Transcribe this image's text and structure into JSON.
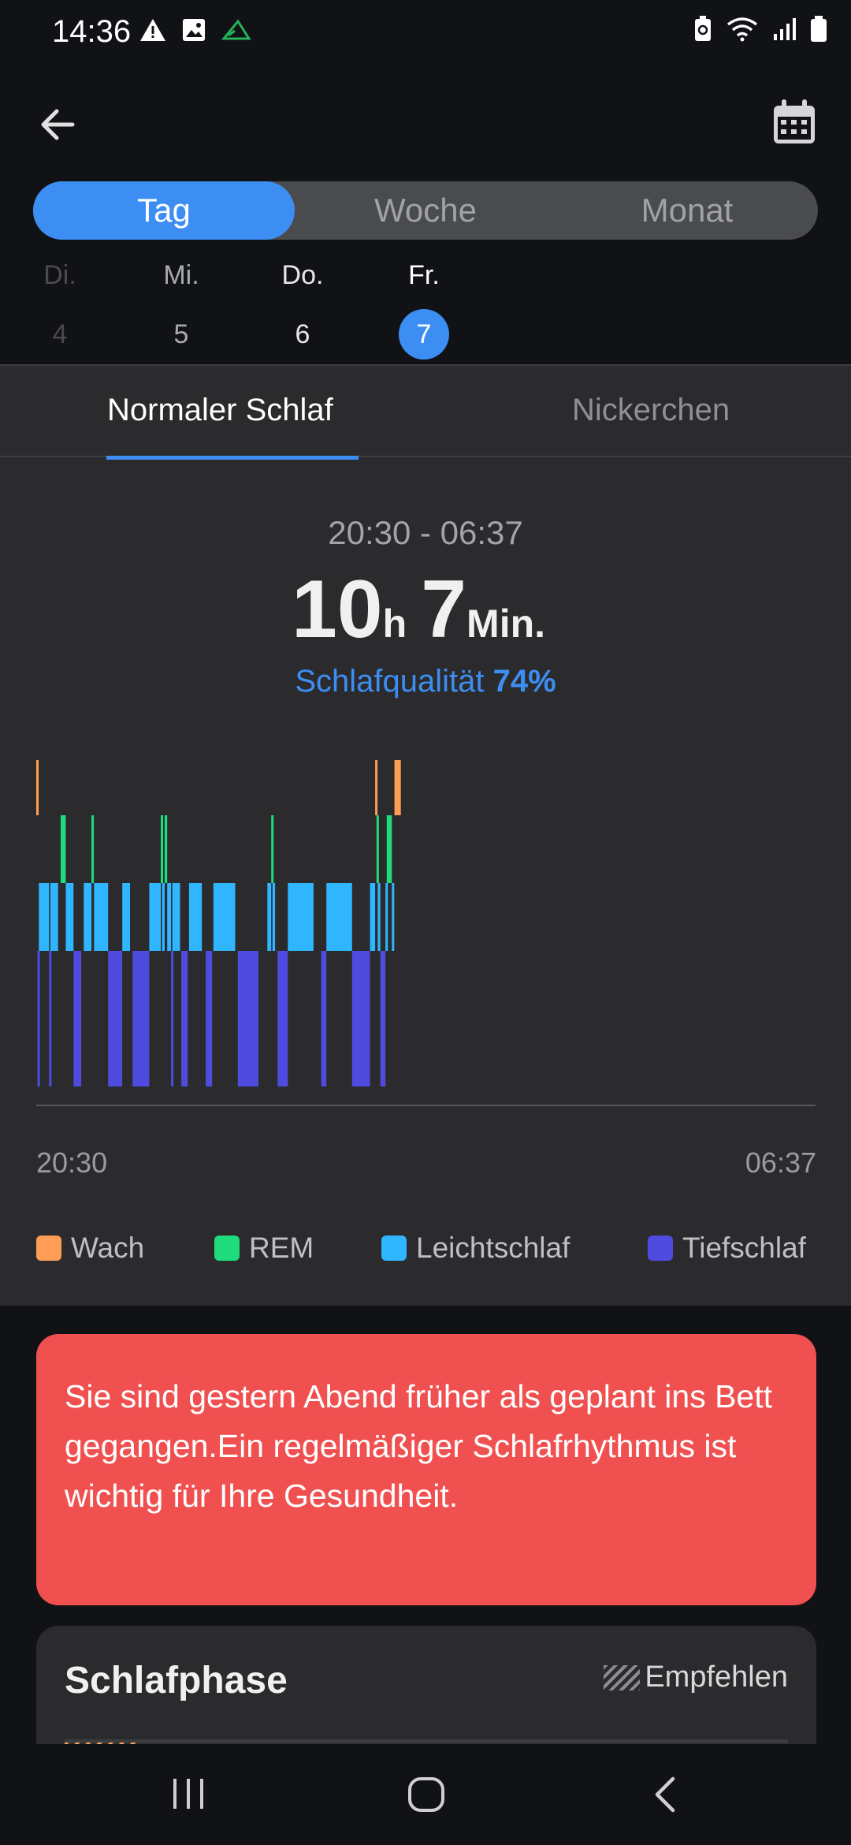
{
  "status_bar": {
    "time": "14:36",
    "left_icons": [
      "warning-icon",
      "image-icon",
      "cast-icon"
    ],
    "right_icons": [
      "battery-saver-icon",
      "wifi-icon",
      "signal-icon",
      "battery-icon"
    ]
  },
  "top_bar": {
    "back_icon": "arrow-left-icon",
    "calendar_icon": "calendar-icon"
  },
  "period_tabs": [
    {
      "label": "Tag",
      "active": true
    },
    {
      "label": "Woche",
      "active": false
    },
    {
      "label": "Monat",
      "active": false
    }
  ],
  "days": [
    {
      "name": "Di.",
      "num": "4"
    },
    {
      "name": "Mi.",
      "num": "5"
    },
    {
      "name": "Do.",
      "num": "6"
    },
    {
      "name": "Fr.",
      "num": "7",
      "selected": true
    }
  ],
  "sleep_tabs": [
    {
      "label": "Normaler Schlaf",
      "active": true
    },
    {
      "label": "Nickerchen",
      "active": false
    }
  ],
  "summary": {
    "time_range": "20:30 - 06:37",
    "hours": "10",
    "hours_unit": "h",
    "minutes": "7",
    "minutes_unit": "Min.",
    "quality_label": "Schlafqualität",
    "quality_value": "74%"
  },
  "chart_data": {
    "type": "timeline",
    "x_start": "20:30",
    "x_end": "06:37",
    "stages": [
      "Wach",
      "REM",
      "Leichtschlaf",
      "Tiefschlaf"
    ],
    "colors": {
      "Wach": "#ff9d57",
      "REM": "#1edc7c",
      "Leichtschlaf": "#30b5ff",
      "Tiefschlaf": "#4f4bdf"
    },
    "segments": [
      {
        "stage": "Wach",
        "start": "20:30",
        "end": "20:31"
      },
      {
        "stage": "Tiefschlaf",
        "start": "20:31",
        "end": "20:32"
      },
      {
        "stage": "Leichtschlaf",
        "start": "20:32",
        "end": "20:40"
      },
      {
        "stage": "Tiefschlaf",
        "start": "20:40",
        "end": "20:41"
      },
      {
        "stage": "Leichtschlaf",
        "start": "20:41",
        "end": "20:47"
      },
      {
        "stage": "REM",
        "start": "20:49",
        "end": "20:53"
      },
      {
        "stage": "Leichtschlaf",
        "start": "20:53",
        "end": "20:59"
      },
      {
        "stage": "Tiefschlaf",
        "start": "20:59",
        "end": "21:05"
      },
      {
        "stage": "Leichtschlaf",
        "start": "21:07",
        "end": "21:13"
      },
      {
        "stage": "REM",
        "start": "21:13",
        "end": "21:14"
      },
      {
        "stage": "Leichtschlaf",
        "start": "21:15",
        "end": "21:26"
      },
      {
        "stage": "Tiefschlaf",
        "start": "21:26",
        "end": "21:37"
      },
      {
        "stage": "Leichtschlaf",
        "start": "21:37",
        "end": "21:43"
      },
      {
        "stage": "Tiefschlaf",
        "start": "21:45",
        "end": "21:58"
      },
      {
        "stage": "Leichtschlaf",
        "start": "21:58",
        "end": "22:07"
      },
      {
        "stage": "REM",
        "start": "22:07",
        "end": "22:08"
      },
      {
        "stage": "Leichtschlaf",
        "start": "22:08",
        "end": "22:10"
      },
      {
        "stage": "REM",
        "start": "22:10",
        "end": "22:12"
      },
      {
        "stage": "Leichtschlaf",
        "start": "22:12",
        "end": "22:15"
      },
      {
        "stage": "Tiefschlaf",
        "start": "22:15",
        "end": "22:16"
      },
      {
        "stage": "Leichtschlaf",
        "start": "22:16",
        "end": "22:22"
      },
      {
        "stage": "Tiefschlaf",
        "start": "22:23",
        "end": "22:28"
      },
      {
        "stage": "Leichtschlaf",
        "start": "22:29",
        "end": "22:39"
      },
      {
        "stage": "Tiefschlaf",
        "start": "22:42",
        "end": "22:47"
      },
      {
        "stage": "Leichtschlaf",
        "start": "22:48",
        "end": "23:05"
      },
      {
        "stage": "Tiefschlaf",
        "start": "23:07",
        "end": "23:23"
      },
      {
        "stage": "Leichtschlaf",
        "start": "23:30",
        "end": "23:33"
      },
      {
        "stage": "REM",
        "start": "23:33",
        "end": "23:34"
      },
      {
        "stage": "Leichtschlaf",
        "start": "23:34",
        "end": "23:36"
      },
      {
        "stage": "Tiefschlaf",
        "start": "23:38",
        "end": "23:46"
      },
      {
        "stage": "Leichtschlaf",
        "start": "23:46",
        "end": "00:06"
      },
      {
        "stage": "Tiefschlaf",
        "start": "00:12",
        "end": "00:16"
      },
      {
        "stage": "Leichtschlaf",
        "start": "00:16",
        "end": "00:36"
      },
      {
        "stage": "Tiefschlaf",
        "start": "00:36",
        "end": "00:50"
      },
      {
        "stage": "Leichtschlaf",
        "start": "00:50",
        "end": "00:54"
      },
      {
        "stage": "Wach",
        "start": "00:54",
        "end": "00:55"
      },
      {
        "stage": "REM",
        "start": "00:55",
        "end": "00:56"
      },
      {
        "stage": "Leichtschlaf",
        "start": "00:56",
        "end": "00:58"
      },
      {
        "stage": "Tiefschlaf",
        "start": "00:58",
        "end": "01:02"
      },
      {
        "stage": "Leichtschlaf",
        "start": "01:02",
        "end": "01:03"
      },
      {
        "stage": "REM",
        "start": "01:03",
        "end": "01:07"
      },
      {
        "stage": "Leichtschlaf",
        "start": "01:07",
        "end": "01:08"
      },
      {
        "stage": "Wach",
        "start": "01:09",
        "end": "01:14"
      }
    ]
  },
  "legend": [
    {
      "label": "Wach",
      "color": "#ff9d57"
    },
    {
      "label": "REM",
      "color": "#1edc7c"
    },
    {
      "label": "Leichtschlaf",
      "color": "#30b5ff"
    },
    {
      "label": "Tiefschlaf",
      "color": "#4f4bdf"
    }
  ],
  "alert": {
    "text": "Sie sind gestern Abend früher als geplant ins Bett gegangen.Ein regelmäßiger Schlafrhythmus ist wichtig für Ihre Gesundheit."
  },
  "phase_card": {
    "title": "Schlafphase",
    "recommend_label": "Empfehlen"
  }
}
